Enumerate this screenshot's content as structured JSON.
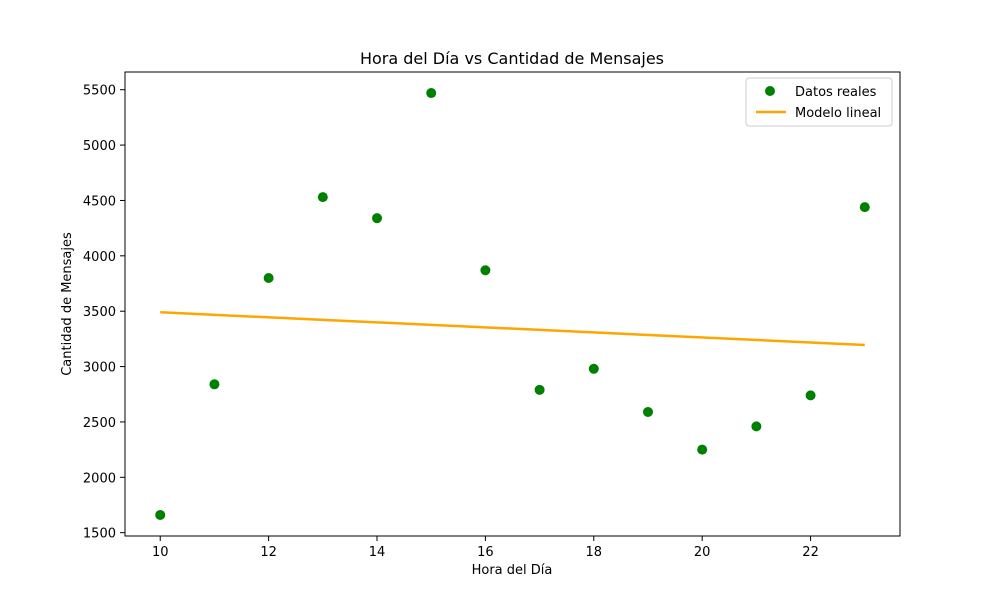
{
  "chart_data": {
    "type": "scatter",
    "title": "Hora del Día vs Cantidad de Mensajes",
    "xlabel": "Hora del Día",
    "ylabel": "Cantidad de Mensajes",
    "xlim": [
      9.35,
      23.65
    ],
    "ylim": [
      1470,
      5660
    ],
    "xticks": [
      10,
      12,
      14,
      16,
      18,
      20,
      22
    ],
    "yticks": [
      1500,
      2000,
      2500,
      3000,
      3500,
      4000,
      4500,
      5000,
      5500
    ],
    "grid": false,
    "legend_position": "top-right",
    "series": [
      {
        "name": "Datos reales",
        "kind": "scatter",
        "color": "#008000",
        "x": [
          10,
          11,
          12,
          13,
          14,
          15,
          16,
          17,
          18,
          19,
          20,
          21,
          22,
          23
        ],
        "y": [
          1660,
          2840,
          3800,
          4530,
          4340,
          5470,
          3870,
          2790,
          2980,
          2590,
          2250,
          2460,
          2740,
          4440
        ]
      },
      {
        "name": "Modelo lineal",
        "kind": "line",
        "color": "#ffa500",
        "x": [
          10,
          23
        ],
        "y": [
          3490,
          3195
        ]
      }
    ]
  }
}
